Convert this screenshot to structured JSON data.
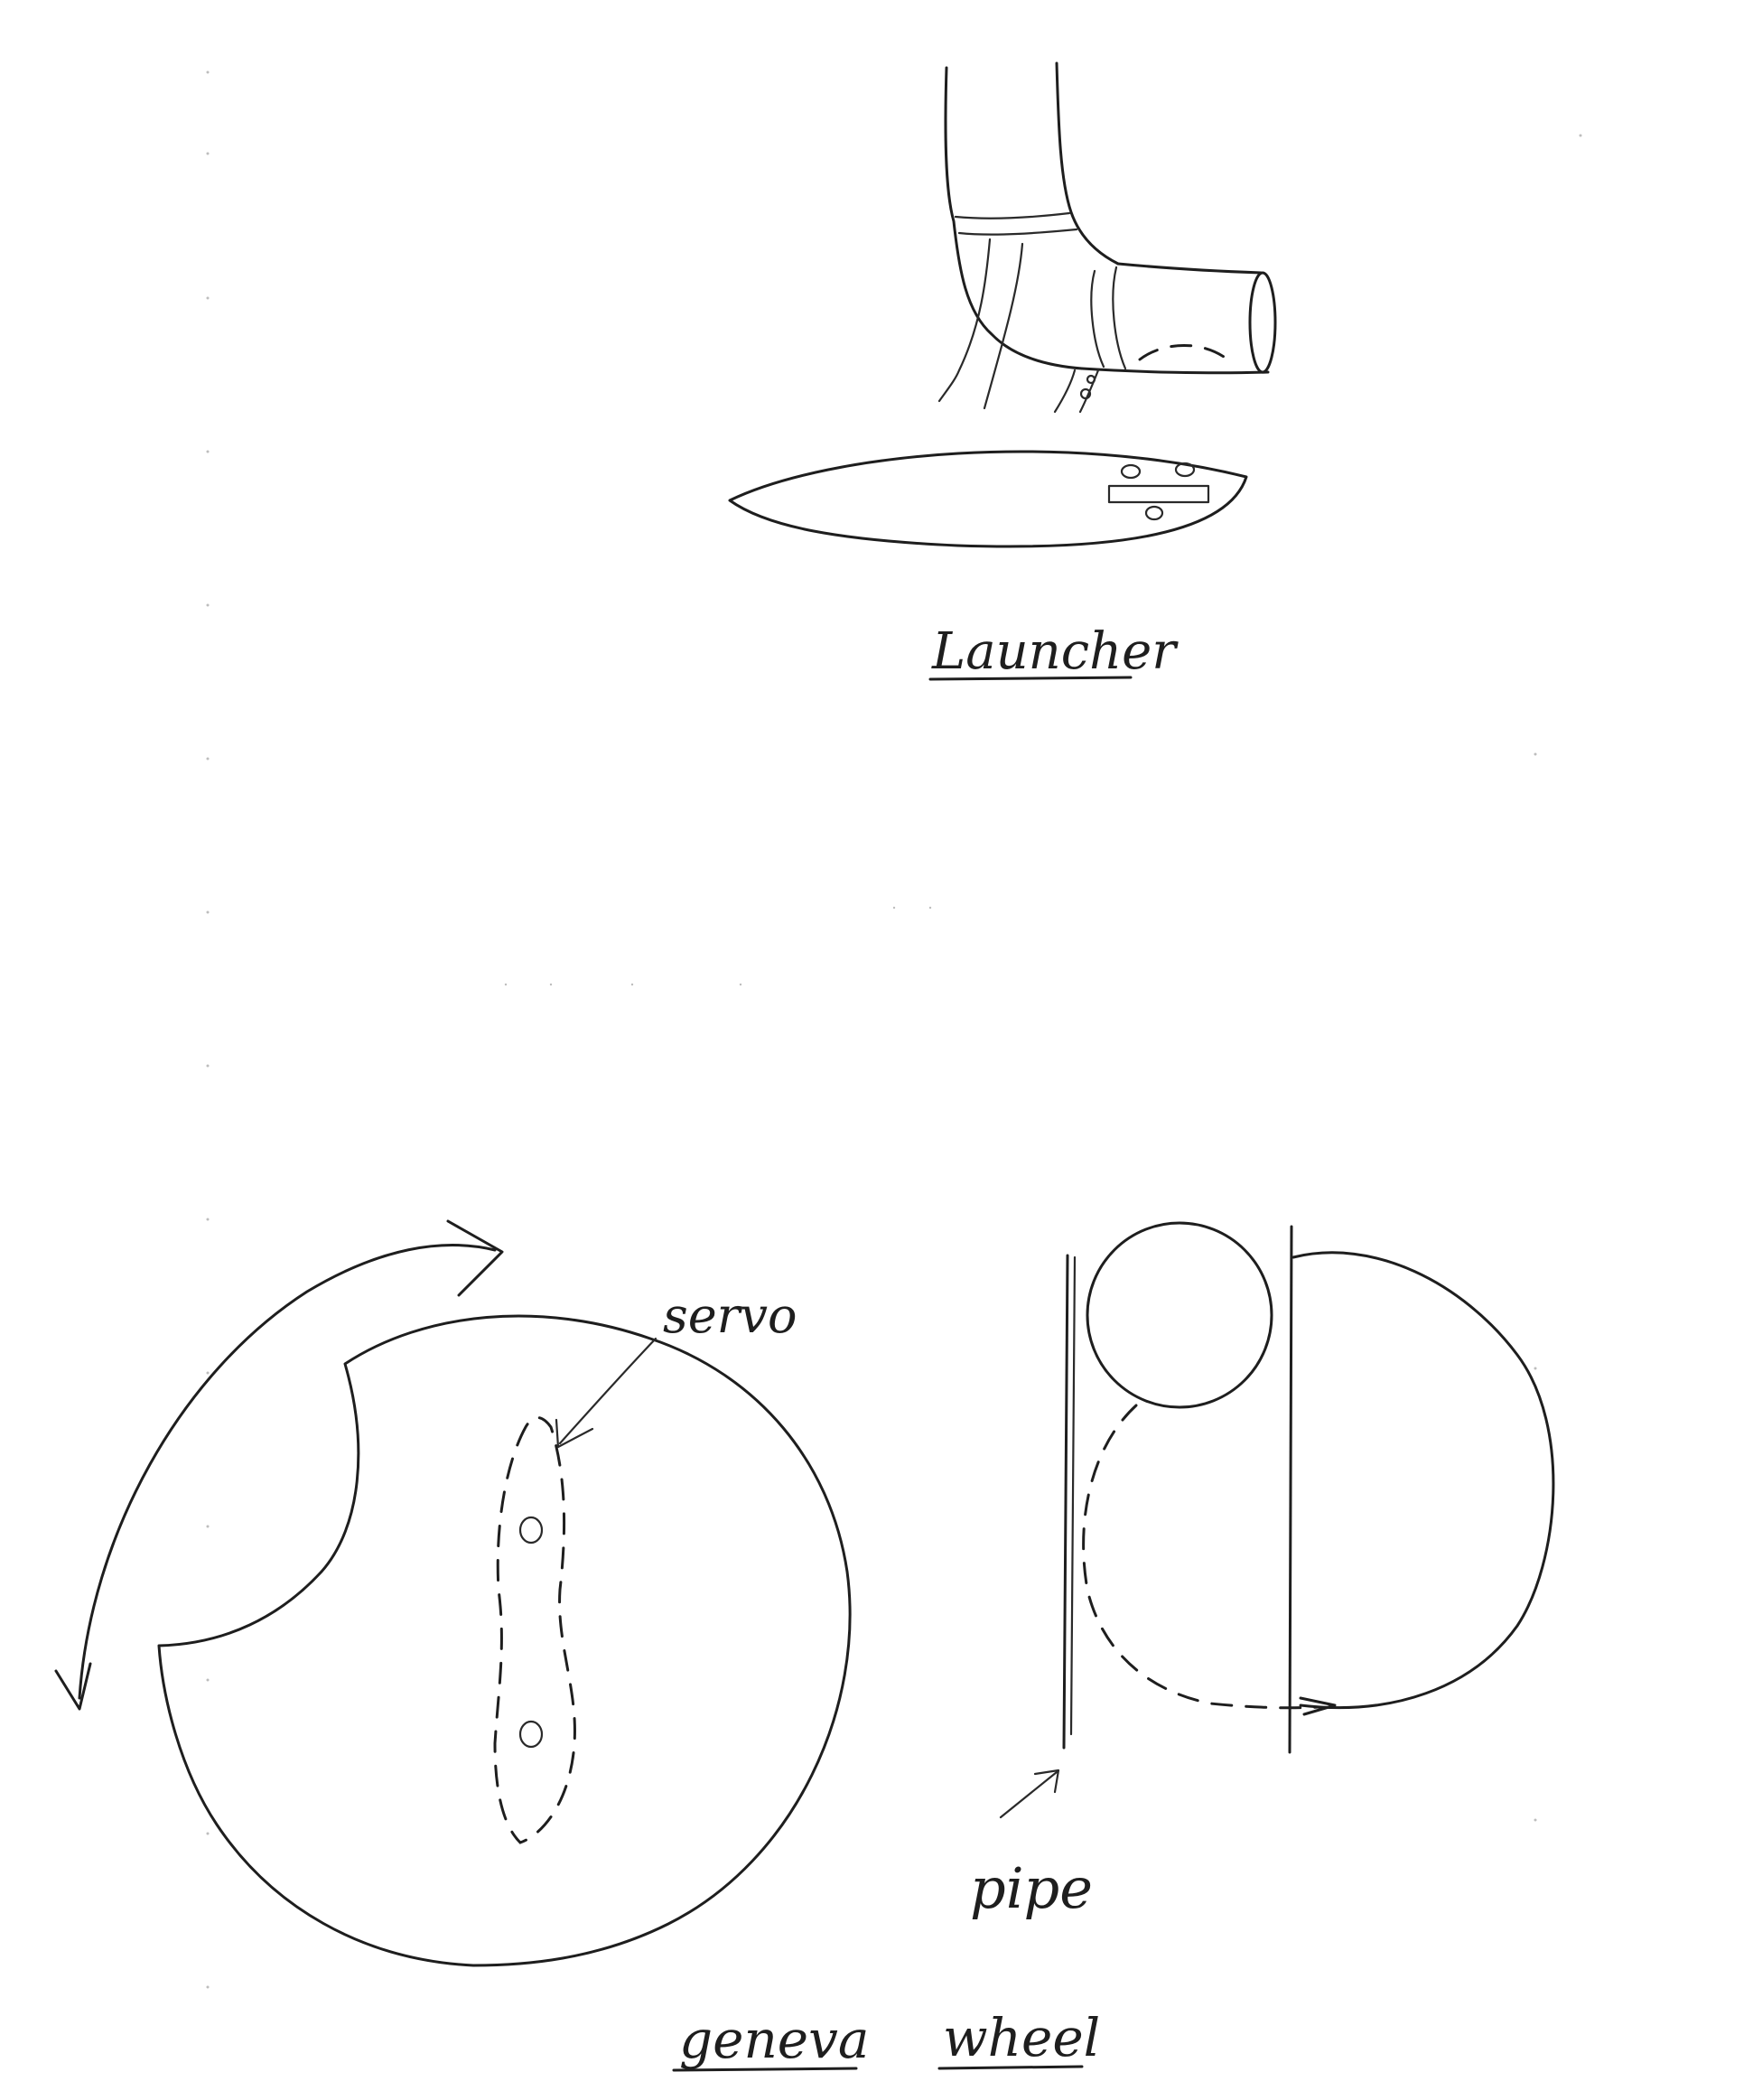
{
  "labels": {
    "launcher": "Launcher",
    "servo": "servo",
    "pipe": "pipe",
    "geneva": "geneva",
    "wheel": "wheel"
  },
  "colors": {
    "ink": "#1e1e1e",
    "paper": "#ffffff"
  }
}
